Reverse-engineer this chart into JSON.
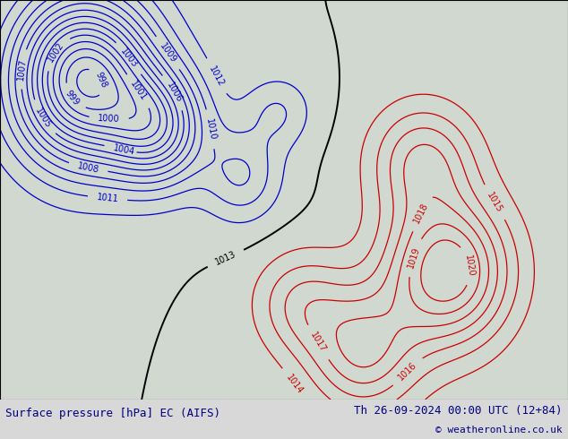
{
  "title_left": "Surface pressure [hPa] EC (AIFS)",
  "title_right": "Th 26-09-2024 00:00 UTC (12+84)",
  "copyright": "© weatheronline.co.uk",
  "bg_color": "#b8d898",
  "land_color": "#b8d898",
  "sea_color": "#d0d8d0",
  "border_color": "#000000",
  "footer_bg": "#d8d8d8",
  "footer_text_color": "#000080",
  "blue_contour_color": "#0000cc",
  "red_contour_color": "#cc0000",
  "black_contour_color": "#000000",
  "contour_linewidth": 0.9,
  "label_fontsize": 7,
  "footer_fontsize": 9,
  "copyright_fontsize": 8,
  "figsize": [
    6.34,
    4.9
  ],
  "dpi": 100,
  "extent": [
    -10.0,
    28.0,
    33.0,
    52.0
  ],
  "blue_levels": [
    998,
    999,
    1000,
    1001,
    1002,
    1003,
    1004,
    1005,
    1006,
    1007,
    1008,
    1009,
    1010,
    1011,
    1012
  ],
  "red_levels": [
    1014,
    1015,
    1016,
    1017,
    1018,
    1019,
    1020
  ],
  "black_levels": [
    1013
  ]
}
